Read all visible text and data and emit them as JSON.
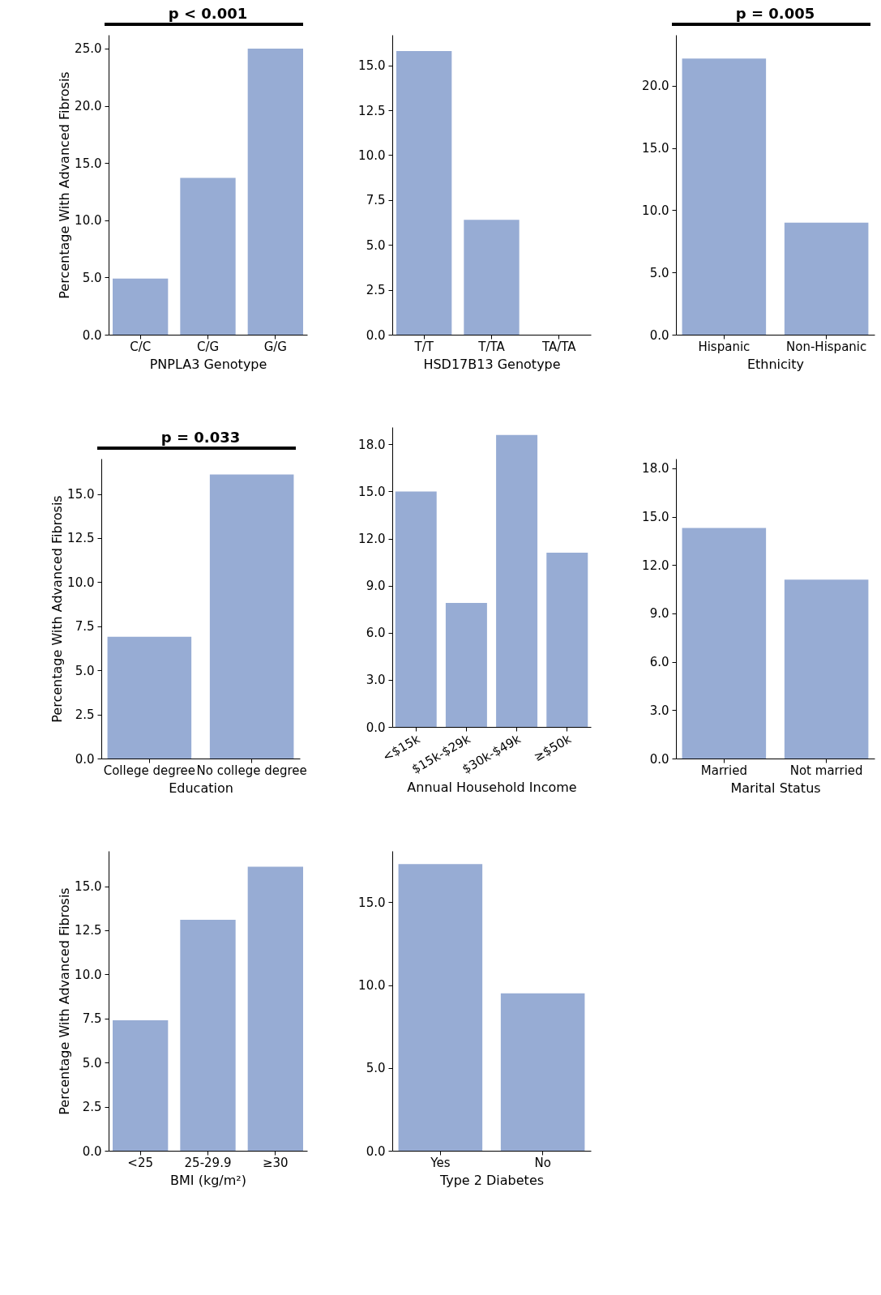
{
  "chart_data": [
    {
      "type": "bar",
      "categories": [
        "C/C",
        "C/G",
        "G/G"
      ],
      "values": [
        4.9,
        13.7,
        25.0
      ],
      "color": "#97acd4",
      "xlabel": "PNPLA3 Genotype",
      "ylabel": "Percentage With Advanced Fibrosis",
      "annotations": [
        "p < 0.001"
      ],
      "ylim": [
        0,
        26.2
      ],
      "yticks": [
        {
          "value": 0,
          "label": "0.0"
        },
        {
          "value": 5,
          "label": "5.0"
        },
        {
          "value": 10,
          "label": "10.0"
        },
        {
          "value": 15,
          "label": "15.0"
        },
        {
          "value": 20,
          "label": "20.0"
        },
        {
          "value": 25,
          "label": "25.0"
        }
      ]
    },
    {
      "type": "bar",
      "categories": [
        "T/T",
        "T/TA",
        "TA/TA"
      ],
      "values": [
        15.8,
        6.4,
        0
      ],
      "color": "#97acd4",
      "xlabel": "HSD17B13 Genotype",
      "ylim": [
        0,
        16.7
      ],
      "yticks": [
        {
          "value": 0,
          "label": "0.0"
        },
        2.5,
        {
          "value": 5,
          "label": "5.0"
        },
        7.5,
        {
          "value": 10,
          "label": "10.0"
        },
        12.5,
        {
          "value": 15,
          "label": "15.0"
        }
      ]
    },
    {
      "type": "bar",
      "categories": [
        "Hispanic",
        "Non-Hispanic"
      ],
      "values": [
        22.2,
        9.0
      ],
      "color": "#97acd4",
      "xlabel": "Ethnicity",
      "annotations": [
        "p = 0.005"
      ],
      "ylim": [
        0,
        24.1
      ],
      "yticks": [
        {
          "value": 0,
          "label": "0.0"
        },
        {
          "value": 5,
          "label": "5.0"
        },
        {
          "value": 10,
          "label": "10.0"
        },
        {
          "value": 15,
          "label": "15.0"
        },
        {
          "value": 20,
          "label": "20.0"
        }
      ]
    },
    {
      "type": "bar",
      "categories": [
        "College degree",
        "No college degree"
      ],
      "values": [
        6.9,
        16.1
      ],
      "color": "#97acd4",
      "xlabel": "Education",
      "ylabel": "Percentage With Advanced Fibrosis",
      "annotations": [
        "p = 0.033"
      ],
      "ylim": [
        0,
        17.0
      ],
      "yticks": [
        {
          "value": 0,
          "label": "0.0"
        },
        2.5,
        {
          "value": 5,
          "label": "5.0"
        },
        7.5,
        {
          "value": 10,
          "label": "10.0"
        },
        12.5,
        {
          "value": 15,
          "label": "15.0"
        }
      ]
    },
    {
      "type": "bar",
      "categories": [
        "<$15k",
        "$15k-$29k",
        "$30k-$49k",
        "≥$50k"
      ],
      "values": [
        15.0,
        7.9,
        18.6,
        11.1
      ],
      "color": "#97acd4",
      "xlabel": "Annual Household Income",
      "ylim": [
        0,
        19.1
      ],
      "yticks": [
        {
          "value": 0,
          "label": "0.0"
        },
        {
          "value": 3,
          "label": "3.0"
        },
        {
          "value": 6,
          "label": "6.0"
        },
        {
          "value": 9,
          "label": "9.0"
        },
        {
          "value": 12,
          "label": "12.0"
        },
        {
          "value": 15,
          "label": "15.0"
        },
        {
          "value": 18,
          "label": "18.0"
        }
      ]
    },
    {
      "type": "bar",
      "categories": [
        "Married",
        "Not married"
      ],
      "values": [
        14.3,
        11.1
      ],
      "color": "#97acd4",
      "xlabel": "Marital Status",
      "ylim": [
        0,
        18.6
      ],
      "yticks": [
        {
          "value": 0,
          "label": "0.0"
        },
        {
          "value": 3,
          "label": "3.0"
        },
        {
          "value": 6,
          "label": "6.0"
        },
        {
          "value": 9,
          "label": "9.0"
        },
        {
          "value": 12,
          "label": "12.0"
        },
        {
          "value": 15,
          "label": "15.0"
        },
        {
          "value": 18,
          "label": "18.0"
        }
      ]
    },
    {
      "type": "bar",
      "categories": [
        "<25",
        "25-29.9",
        "≥30"
      ],
      "values": [
        7.4,
        13.1,
        16.1
      ],
      "color": "#97acd4",
      "xlabel": "BMI (kg/m²)",
      "ylabel": "Percentage With Advanced Fibrosis",
      "ylim": [
        0,
        17.0
      ],
      "yticks": [
        {
          "value": 0,
          "label": "0.0"
        },
        2.5,
        {
          "value": 5,
          "label": "5.0"
        },
        7.5,
        {
          "value": 10,
          "label": "10.0"
        },
        12.5,
        {
          "value": 15,
          "label": "15.0"
        }
      ]
    },
    {
      "type": "bar",
      "categories": [
        "Yes",
        "No"
      ],
      "values": [
        17.3,
        9.5
      ],
      "color": "#97acd4",
      "xlabel": "Type 2 Diabetes",
      "ylim": [
        0,
        18.1
      ],
      "yticks": [
        {
          "value": 0,
          "label": "0.0"
        },
        {
          "value": 5,
          "label": "5.0"
        },
        {
          "value": 10,
          "label": "10.0"
        },
        {
          "value": 15,
          "label": "15.0"
        }
      ]
    }
  ]
}
